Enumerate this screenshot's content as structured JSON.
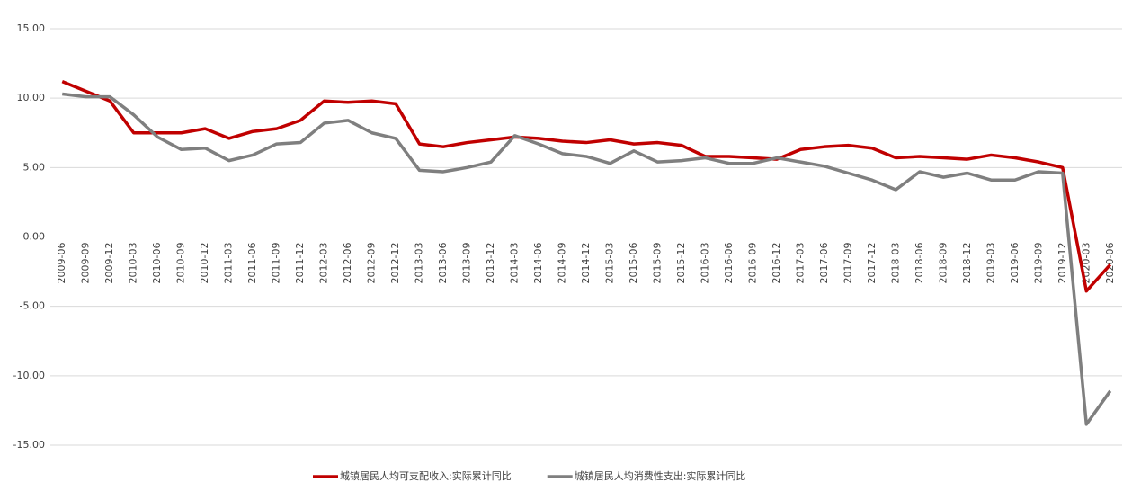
{
  "chart_data": {
    "type": "line",
    "categories": [
      "2009-06",
      "2009-09",
      "2009-12",
      "2010-03",
      "2010-06",
      "2010-09",
      "2010-12",
      "2011-03",
      "2011-06",
      "2011-09",
      "2011-12",
      "2012-03",
      "2012-06",
      "2012-09",
      "2012-12",
      "2013-03",
      "2013-06",
      "2013-09",
      "2013-12",
      "2014-03",
      "2014-06",
      "2014-09",
      "2014-12",
      "2015-03",
      "2015-06",
      "2015-09",
      "2015-12",
      "2016-03",
      "2016-06",
      "2016-09",
      "2016-12",
      "2017-03",
      "2017-06",
      "2017-09",
      "2017-12",
      "2018-03",
      "2018-06",
      "2018-09",
      "2018-12",
      "2019-03",
      "2019-06",
      "2019-09",
      "2019-12",
      "2020-03",
      "2020-06"
    ],
    "series": [
      {
        "name": "城镇居民人均可支配收入:实际累计同比",
        "color": "#c00000",
        "values": [
          11.2,
          10.5,
          9.8,
          7.5,
          7.5,
          7.5,
          7.8,
          7.1,
          7.6,
          7.8,
          8.4,
          9.8,
          9.7,
          9.8,
          9.6,
          6.7,
          6.5,
          6.8,
          7.0,
          7.2,
          7.1,
          6.9,
          6.8,
          7.0,
          6.7,
          6.8,
          6.6,
          5.8,
          5.8,
          5.7,
          5.6,
          6.3,
          6.5,
          6.6,
          6.4,
          5.7,
          5.8,
          5.7,
          5.6,
          5.9,
          5.7,
          5.4,
          5.0,
          -3.9,
          -2.0
        ]
      },
      {
        "name": "城镇居民人均消费性支出:实际累计同比",
        "color": "#7f7f7f",
        "values": [
          10.3,
          10.1,
          10.1,
          8.8,
          7.2,
          6.3,
          6.4,
          5.5,
          5.9,
          6.7,
          6.8,
          8.2,
          8.4,
          7.5,
          7.1,
          4.8,
          4.7,
          5.0,
          5.4,
          7.3,
          6.7,
          6.0,
          5.8,
          5.3,
          6.2,
          5.4,
          5.5,
          5.7,
          5.3,
          5.3,
          5.7,
          5.4,
          5.1,
          4.6,
          4.1,
          3.4,
          4.7,
          4.3,
          4.6,
          4.1,
          4.1,
          4.7,
          4.6,
          -13.5,
          -11.1
        ]
      }
    ],
    "ylim": [
      -15,
      15
    ],
    "yticks": [
      {
        "value": -15,
        "label": "-15.00"
      },
      {
        "value": -10,
        "label": "-10.00"
      },
      {
        "value": -5,
        "label": "-5.00"
      },
      {
        "value": 0,
        "label": "0.00"
      },
      {
        "value": 5,
        "label": "5.00"
      },
      {
        "value": 10,
        "label": "10.00"
      },
      {
        "value": 15,
        "label": "15.00"
      }
    ],
    "grid": true,
    "legend": "bottom"
  }
}
